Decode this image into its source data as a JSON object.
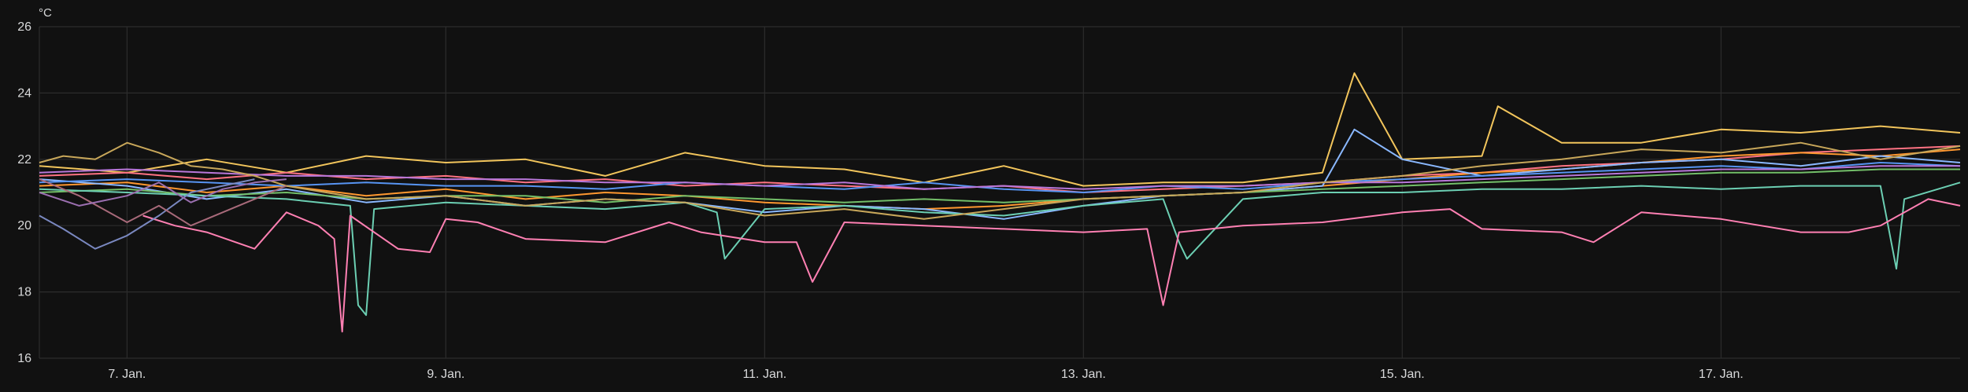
{
  "chart_data": {
    "type": "line",
    "title": "",
    "ylabel": "°C",
    "xlabel": "",
    "ylim": [
      16,
      26
    ],
    "xlim": [
      6.45,
      18.5
    ],
    "grid": true,
    "legend": "none",
    "yticks": [
      16,
      18,
      20,
      22,
      24,
      26
    ],
    "xticks": [
      {
        "value": 7,
        "label": "7. Jan."
      },
      {
        "value": 9,
        "label": "9. Jan."
      },
      {
        "value": 11,
        "label": "11. Jan."
      },
      {
        "value": 13,
        "label": "13. Jan."
      },
      {
        "value": 15,
        "label": "15. Jan."
      },
      {
        "value": 17,
        "label": "17. Jan."
      }
    ],
    "series": [
      {
        "color": "#f2c55c",
        "x": [
          6.45,
          7.0,
          7.5,
          8.0,
          8.5,
          9.0,
          9.5,
          10.0,
          10.5,
          11.0,
          11.5,
          12.0,
          12.5,
          13.0,
          13.5,
          14.0,
          14.5,
          14.7,
          15.0,
          15.5,
          15.6,
          16.0,
          16.5,
          17.0,
          17.5,
          18.0,
          18.5
        ],
        "values": [
          21.8,
          21.6,
          22.0,
          21.6,
          22.1,
          21.9,
          22.0,
          21.5,
          22.2,
          21.8,
          21.7,
          21.3,
          21.8,
          21.2,
          21.3,
          21.3,
          21.6,
          24.6,
          22.0,
          22.1,
          23.6,
          22.5,
          22.5,
          22.9,
          22.8,
          23.0,
          22.8
        ]
      },
      {
        "color": "#ff7383",
        "x": [
          6.45,
          7.0,
          7.5,
          8.0,
          8.5,
          9.0,
          9.5,
          10.0,
          10.5,
          11.0,
          11.5,
          12.0,
          12.5,
          13.0,
          13.5,
          14.0,
          14.5,
          15.0,
          15.5,
          16.0,
          16.5,
          17.0,
          17.5,
          18.0,
          18.5
        ],
        "values": [
          21.5,
          21.6,
          21.4,
          21.6,
          21.4,
          21.5,
          21.3,
          21.4,
          21.2,
          21.3,
          21.2,
          21.1,
          21.2,
          21.0,
          21.1,
          21.2,
          21.3,
          21.5,
          21.6,
          21.8,
          21.9,
          22.0,
          22.2,
          22.3,
          22.4
        ]
      },
      {
        "color": "#ff9830",
        "x": [
          6.45,
          7.0,
          7.5,
          8.0,
          8.5,
          9.0,
          9.5,
          10.0,
          10.5,
          11.0,
          11.5,
          12.0,
          12.5,
          13.0,
          13.5,
          14.0,
          14.5,
          15.0,
          15.5,
          16.0,
          16.5,
          17.0,
          17.5,
          18.0,
          18.5
        ],
        "values": [
          21.2,
          21.3,
          21.0,
          21.2,
          20.9,
          21.1,
          20.8,
          21.0,
          20.9,
          20.7,
          20.6,
          20.5,
          20.6,
          20.8,
          20.9,
          21.0,
          21.2,
          21.4,
          21.6,
          21.7,
          21.9,
          22.1,
          22.2,
          22.1,
          22.3
        ]
      },
      {
        "color": "#8ab8ff",
        "x": [
          6.45,
          7.0,
          7.5,
          8.0,
          8.5,
          9.0,
          9.5,
          10.0,
          10.5,
          11.0,
          11.5,
          12.0,
          12.5,
          13.0,
          13.5,
          14.0,
          14.5,
          14.7,
          15.0,
          15.5,
          16.0,
          16.5,
          17.0,
          17.5,
          18.0,
          18.5
        ],
        "values": [
          21.4,
          21.2,
          20.8,
          21.1,
          20.7,
          20.9,
          20.6,
          20.8,
          20.7,
          20.4,
          20.6,
          20.5,
          20.2,
          20.6,
          20.9,
          21.0,
          21.2,
          22.9,
          22.0,
          21.5,
          21.7,
          21.9,
          22.0,
          21.8,
          22.1,
          21.9
        ]
      },
      {
        "color": "#73bf69",
        "x": [
          6.45,
          7.0,
          7.5,
          8.0,
          8.5,
          9.0,
          9.5,
          10.0,
          10.5,
          11.0,
          11.5,
          12.0,
          12.5,
          13.0,
          13.5,
          14.0,
          14.5,
          15.0,
          15.5,
          16.0,
          16.5,
          17.0,
          17.5,
          18.0,
          18.5
        ],
        "values": [
          21.0,
          21.1,
          20.9,
          21.0,
          20.8,
          20.9,
          20.9,
          20.7,
          20.9,
          20.8,
          20.7,
          20.8,
          20.7,
          20.8,
          20.9,
          21.0,
          21.1,
          21.2,
          21.3,
          21.4,
          21.5,
          21.6,
          21.6,
          21.7,
          21.7
        ]
      },
      {
        "color": "#5794f2",
        "x": [
          6.45,
          7.0,
          7.5,
          8.0,
          8.5,
          9.0,
          9.5,
          10.0,
          10.5,
          11.0,
          11.5,
          12.0,
          12.5,
          13.0,
          13.5,
          14.0,
          14.5,
          15.0,
          15.5,
          16.0,
          16.5,
          17.0,
          17.5,
          18.0,
          18.5
        ],
        "values": [
          21.3,
          21.4,
          21.3,
          21.2,
          21.3,
          21.2,
          21.2,
          21.1,
          21.3,
          21.2,
          21.1,
          21.3,
          21.1,
          21.0,
          21.2,
          21.1,
          21.3,
          21.4,
          21.5,
          21.6,
          21.7,
          21.8,
          21.7,
          21.9,
          21.8
        ]
      },
      {
        "color": "#b877d9",
        "x": [
          6.45,
          7.0,
          7.5,
          8.0,
          8.5,
          9.0,
          9.5,
          10.0,
          10.5,
          11.0,
          11.5,
          12.0,
          12.5,
          13.0,
          13.5,
          14.0,
          14.5,
          15.0,
          15.5,
          16.0,
          16.5,
          17.0,
          17.5,
          18.0,
          18.5
        ],
        "values": [
          21.6,
          21.7,
          21.6,
          21.5,
          21.5,
          21.4,
          21.4,
          21.3,
          21.3,
          21.2,
          21.3,
          21.1,
          21.2,
          21.1,
          21.2,
          21.2,
          21.3,
          21.3,
          21.4,
          21.5,
          21.6,
          21.7,
          21.7,
          21.8,
          21.8
        ]
      },
      {
        "color": "#6ccfb3",
        "x": [
          6.45,
          7.0,
          7.5,
          8.0,
          8.4,
          8.45,
          8.5,
          8.55,
          9.0,
          9.5,
          10.0,
          10.5,
          10.7,
          10.75,
          11.0,
          11.5,
          12.0,
          12.5,
          13.0,
          13.5,
          13.6,
          13.65,
          14.0,
          14.5,
          15.0,
          15.5,
          16.0,
          16.5,
          17.0,
          17.5,
          18.0,
          18.1,
          18.15,
          18.5
        ],
        "values": [
          21.1,
          21.0,
          20.9,
          20.8,
          20.6,
          17.6,
          17.3,
          20.5,
          20.7,
          20.6,
          20.5,
          20.7,
          20.4,
          19.0,
          20.5,
          20.6,
          20.4,
          20.3,
          20.6,
          20.8,
          19.5,
          19.0,
          20.8,
          21.0,
          21.0,
          21.1,
          21.1,
          21.2,
          21.1,
          21.2,
          21.2,
          18.7,
          20.8,
          21.3
        ]
      },
      {
        "color": "#ff80b3",
        "x": [
          7.1,
          7.3,
          7.5,
          7.8,
          8.0,
          8.2,
          8.3,
          8.35,
          8.4,
          8.7,
          8.9,
          9.0,
          9.2,
          9.5,
          10.0,
          10.4,
          10.6,
          11.0,
          11.2,
          11.3,
          11.5,
          12.0,
          12.5,
          13.0,
          13.4,
          13.5,
          13.6,
          13.8,
          14.0,
          14.5,
          15.0,
          15.3,
          15.5,
          16.0,
          16.2,
          16.5,
          17.0,
          17.5,
          17.8,
          18.0,
          18.3,
          18.5
        ],
        "values": [
          20.3,
          20.0,
          19.8,
          19.3,
          20.4,
          20.0,
          19.6,
          16.8,
          20.3,
          19.3,
          19.2,
          20.2,
          20.1,
          19.6,
          19.5,
          20.1,
          19.8,
          19.5,
          19.5,
          18.3,
          20.1,
          20.0,
          19.9,
          19.8,
          19.9,
          17.6,
          19.8,
          19.9,
          20.0,
          20.1,
          20.4,
          20.5,
          19.9,
          19.8,
          19.5,
          20.4,
          20.2,
          19.8,
          19.8,
          20.0,
          20.8,
          20.6
        ]
      },
      {
        "color": "#c8a75a",
        "x": [
          6.45,
          6.6,
          6.8,
          7.0,
          7.2,
          7.4,
          7.6,
          7.8,
          8.0,
          8.5,
          9.0,
          9.5,
          10.0,
          10.5,
          11.0,
          11.5,
          12.0,
          12.5,
          13.0,
          13.5,
          14.0,
          14.5,
          15.0,
          15.5,
          16.0,
          16.5,
          17.0,
          17.5,
          18.0,
          18.5
        ],
        "values": [
          21.9,
          22.1,
          22.0,
          22.5,
          22.2,
          21.8,
          21.7,
          21.5,
          21.2,
          20.8,
          20.9,
          20.6,
          20.8,
          20.7,
          20.3,
          20.5,
          20.2,
          20.5,
          20.8,
          20.9,
          21.0,
          21.3,
          21.5,
          21.8,
          22.0,
          22.3,
          22.2,
          22.5,
          22.0,
          22.4
        ]
      },
      {
        "color": "#7a88c0",
        "x": [
          6.45,
          6.6,
          6.8,
          7.0,
          7.2,
          7.4,
          7.6,
          7.8
        ],
        "values": [
          20.3,
          19.9,
          19.3,
          19.7,
          20.3,
          21.0,
          21.2,
          21.4
        ]
      },
      {
        "color": "#a86a7a",
        "x": [
          6.45,
          6.7,
          7.0,
          7.2,
          7.4,
          7.6,
          7.8,
          8.0
        ],
        "values": [
          21.4,
          20.9,
          20.1,
          20.6,
          20.0,
          20.4,
          20.8,
          21.2
        ]
      },
      {
        "color": "#9b6fb0",
        "x": [
          6.45,
          6.7,
          7.0,
          7.2,
          7.4,
          7.6,
          7.8,
          8.0
        ],
        "values": [
          21.0,
          20.6,
          20.9,
          21.3,
          20.7,
          21.1,
          21.3,
          21.4
        ]
      }
    ]
  }
}
